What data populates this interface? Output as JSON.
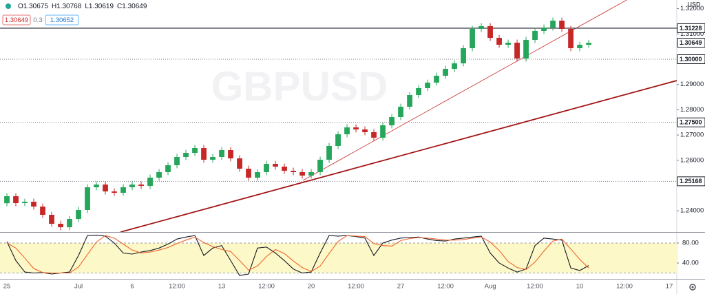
{
  "chart_data": [
    {
      "type": "candlestick",
      "symbol": "GBPUSD",
      "currency": "USD",
      "ohlc_legend": [
        "O1.30675",
        "H1.30768",
        "L1.30619",
        "C1.30649"
      ],
      "bid": 1.30649,
      "spread": 0.3,
      "ask": 1.30652,
      "last_price": 1.30649,
      "up_color": "#26a65b",
      "down_color": "#c62828",
      "x": [
        0,
        0.5,
        1,
        1.5,
        2,
        2.5,
        3,
        3.5,
        4,
        4.5,
        5,
        5.5,
        6,
        6.5,
        7,
        7.5,
        8,
        8.5,
        9,
        9.5,
        10,
        10.5,
        11,
        11.5,
        12,
        12.5,
        13,
        13.5,
        14,
        14.5,
        15,
        15.5,
        16,
        16.5,
        17,
        17.5,
        18,
        18.5,
        19,
        19.5,
        20,
        20.5,
        21,
        21.5,
        22,
        22.5,
        23,
        23.5,
        24,
        24.5,
        25,
        25.5,
        26,
        26.5,
        27,
        27.5,
        28,
        28.5,
        29,
        29.5,
        30,
        30.5,
        31,
        31.5,
        32,
        32.5
      ],
      "open": [
        1.243,
        1.24578,
        1.24305,
        1.2436,
        1.24169,
        1.23842,
        1.23488,
        1.23351,
        1.23678,
        1.24033,
        1.24932,
        1.25041,
        1.24768,
        1.24714,
        1.24932,
        1.25041,
        1.24986,
        1.25313,
        1.25531,
        1.25804,
        1.26131,
        1.26294,
        1.26485,
        1.26022,
        1.26131,
        1.26403,
        1.26076,
        1.25668,
        1.25313,
        1.25531,
        1.25858,
        1.25749,
        1.25586,
        1.25531,
        1.25395,
        1.25531,
        1.26022,
        1.26567,
        1.2703,
        1.27302,
        1.27221,
        1.27112,
        1.26894,
        1.27384,
        1.27711,
        1.2812,
        1.28583,
        1.28856,
        1.29074,
        1.29346,
        1.29619,
        1.29837,
        1.30436,
        1.31199,
        1.31308,
        1.30845,
        1.30572,
        1.30654,
        1.30027,
        1.30763,
        1.31117,
        1.31253,
        1.31526,
        1.31199,
        1.30436,
        1.30572
      ],
      "high": [
        1.24698,
        1.24698,
        1.2448,
        1.2448,
        1.24289,
        1.23962,
        1.23608,
        1.23798,
        1.24153,
        1.25052,
        1.25161,
        1.25161,
        1.24888,
        1.25052,
        1.25161,
        1.25161,
        1.25433,
        1.25651,
        1.25924,
        1.26251,
        1.26414,
        1.26605,
        1.26605,
        1.26251,
        1.26523,
        1.26523,
        1.26196,
        1.25788,
        1.25651,
        1.25978,
        1.25978,
        1.25869,
        1.25706,
        1.25651,
        1.25651,
        1.26142,
        1.26687,
        1.2715,
        1.27422,
        1.27422,
        1.27341,
        1.27232,
        1.27504,
        1.27831,
        1.2824,
        1.28703,
        1.28976,
        1.29194,
        1.29466,
        1.29739,
        1.29957,
        1.30556,
        1.31319,
        1.31428,
        1.31428,
        1.30965,
        1.30774,
        1.30774,
        1.30883,
        1.31237,
        1.31373,
        1.31646,
        1.31646,
        1.31319,
        1.30692,
        1.30768
      ],
      "low": [
        1.2418,
        1.24185,
        1.24185,
        1.24049,
        1.23722,
        1.23368,
        1.23231,
        1.23231,
        1.23558,
        1.23913,
        1.24812,
        1.24648,
        1.24594,
        1.24594,
        1.24812,
        1.24866,
        1.24866,
        1.25193,
        1.25411,
        1.25684,
        1.26011,
        1.26174,
        1.25902,
        1.25902,
        1.26011,
        1.25956,
        1.25548,
        1.25193,
        1.25193,
        1.25411,
        1.25629,
        1.25466,
        1.25411,
        1.25275,
        1.25275,
        1.25411,
        1.25902,
        1.26447,
        1.2691,
        1.27101,
        1.26992,
        1.26774,
        1.26774,
        1.27264,
        1.27591,
        1.28,
        1.28463,
        1.28736,
        1.28954,
        1.29226,
        1.29499,
        1.29717,
        1.30316,
        1.31079,
        1.30725,
        1.30452,
        1.30452,
        1.29907,
        1.29907,
        1.30643,
        1.30997,
        1.31133,
        1.31079,
        1.30316,
        1.30316,
        1.30452
      ],
      "close": [
        1.24578,
        1.24305,
        1.2436,
        1.24169,
        1.23842,
        1.23488,
        1.23351,
        1.23678,
        1.24033,
        1.24932,
        1.25041,
        1.24768,
        1.24714,
        1.24932,
        1.25041,
        1.24986,
        1.25313,
        1.25531,
        1.25804,
        1.26131,
        1.26294,
        1.26485,
        1.26022,
        1.26131,
        1.26403,
        1.26076,
        1.25668,
        1.25313,
        1.25531,
        1.25858,
        1.25749,
        1.25586,
        1.25531,
        1.25395,
        1.25531,
        1.26022,
        1.26567,
        1.2703,
        1.27302,
        1.27221,
        1.27112,
        1.26894,
        1.27384,
        1.27711,
        1.2812,
        1.28583,
        1.28856,
        1.29074,
        1.29346,
        1.29619,
        1.29837,
        1.30436,
        1.31199,
        1.31308,
        1.30845,
        1.30572,
        1.30654,
        1.30027,
        1.30763,
        1.31117,
        1.31253,
        1.31526,
        1.31199,
        1.30436,
        1.30572,
        1.30649
      ],
      "xlim": [
        -0.385,
        37.42
      ],
      "xticks": [
        {
          "value": 0,
          "label": "25"
        },
        {
          "value": 4,
          "label": "Jul"
        },
        {
          "value": 7,
          "label": "6"
        },
        {
          "value": 9.5,
          "label": "12:00"
        },
        {
          "value": 12,
          "label": "13"
        },
        {
          "value": 14.5,
          "label": "12:00"
        },
        {
          "value": 17,
          "label": "20"
        },
        {
          "value": 19.5,
          "label": "12:00"
        },
        {
          "value": 22,
          "label": "27"
        },
        {
          "value": 24.5,
          "label": "12:00"
        },
        {
          "value": 27,
          "label": "Aug"
        },
        {
          "value": 29.5,
          "label": "12:00"
        },
        {
          "value": 32,
          "label": "10"
        },
        {
          "value": 34.5,
          "label": "12:00"
        },
        {
          "value": 37,
          "label": "17"
        }
      ],
      "ylim": [
        1.23161,
        1.32343
      ],
      "yticks": [
        {
          "value": 1.24,
          "label": "1.24000"
        },
        {
          "value": 1.26,
          "label": "1.26000"
        },
        {
          "value": 1.27,
          "label": "1.27000"
        },
        {
          "value": 1.28,
          "label": "1.28000"
        },
        {
          "value": 1.29,
          "label": "1.29000"
        },
        {
          "value": 1.31,
          "label": "1.31000"
        },
        {
          "value": 1.32,
          "label": "1.32000"
        }
      ],
      "levels": [
        {
          "value": 1.31228,
          "style": "solid"
        },
        {
          "value": 1.3,
          "label": "1.30000",
          "style": "dotted"
        },
        {
          "value": 1.275,
          "label": "1.27500",
          "style": "dotted"
        },
        {
          "value": 1.25168,
          "style": "dotted"
        }
      ],
      "trendlines": [
        {
          "points": [
            [
              6.35,
              1.23161
            ],
            [
              37.42,
              1.29155
            ]
          ],
          "color": "#a31515",
          "width": 1.8
        },
        {
          "points": [
            [
              16.54,
              1.25204
            ],
            [
              34.62,
              1.32343
            ]
          ],
          "color": "#c62828",
          "width": 0.8
        }
      ]
    },
    {
      "type": "line",
      "band": [
        20,
        80
      ],
      "band_color": "#fdf8c8",
      "x": [
        0,
        0.5,
        1,
        1.5,
        2,
        2.5,
        3,
        3.5,
        4,
        4.5,
        5,
        5.5,
        6,
        6.5,
        7,
        7.5,
        8,
        8.5,
        9,
        9.5,
        10,
        10.5,
        11,
        11.5,
        12,
        12.5,
        13,
        13.5,
        14,
        14.5,
        15,
        15.5,
        16,
        16.5,
        17,
        17.5,
        18,
        18.5,
        19,
        19.5,
        20,
        20.5,
        21,
        21.5,
        22,
        22.5,
        23,
        23.5,
        24,
        24.5,
        25,
        25.5,
        26,
        26.5,
        27,
        27.5,
        28,
        28.5,
        29,
        29.5,
        30,
        30.5,
        31,
        31.5,
        32,
        32.5
      ],
      "series": [
        {
          "color": "#131722",
          "values": [
            83,
            45,
            22,
            20,
            21,
            18,
            20,
            22,
            55,
            95,
            96,
            94,
            80,
            60,
            58,
            62,
            65,
            70,
            78,
            88,
            92,
            95,
            55,
            70,
            75,
            45,
            15,
            18,
            70,
            72,
            60,
            45,
            28,
            20,
            22,
            60,
            95,
            94,
            95,
            93,
            90,
            55,
            80,
            86,
            90,
            91,
            92,
            88,
            85,
            84,
            88,
            90,
            92,
            94,
            60,
            40,
            30,
            22,
            28,
            75,
            90,
            88,
            86,
            30,
            25,
            35
          ]
        },
        {
          "color": "#f0642a",
          "values": [
            80,
            70,
            50,
            29,
            21,
            20,
            20,
            20,
            32,
            57,
            82,
            95,
            90,
            78,
            66,
            60,
            62,
            66,
            71,
            79,
            86,
            92,
            81,
            73,
            67,
            63,
            45,
            26,
            34,
            53,
            67,
            59,
            44,
            31,
            23,
            34,
            59,
            83,
            95,
            94,
            93,
            79,
            75,
            74,
            85,
            89,
            91,
            90,
            88,
            86,
            86,
            87,
            90,
            92,
            82,
            65,
            43,
            31,
            27,
            42,
            64,
            84,
            88,
            68,
            47,
            30
          ]
        }
      ],
      "xlim": [
        -0.385,
        37.42
      ],
      "ylim": [
        8.3,
        100.7
      ],
      "yticks": [
        {
          "value": 40,
          "label": "40.00"
        },
        {
          "value": 80,
          "label": "80.00"
        }
      ]
    }
  ]
}
